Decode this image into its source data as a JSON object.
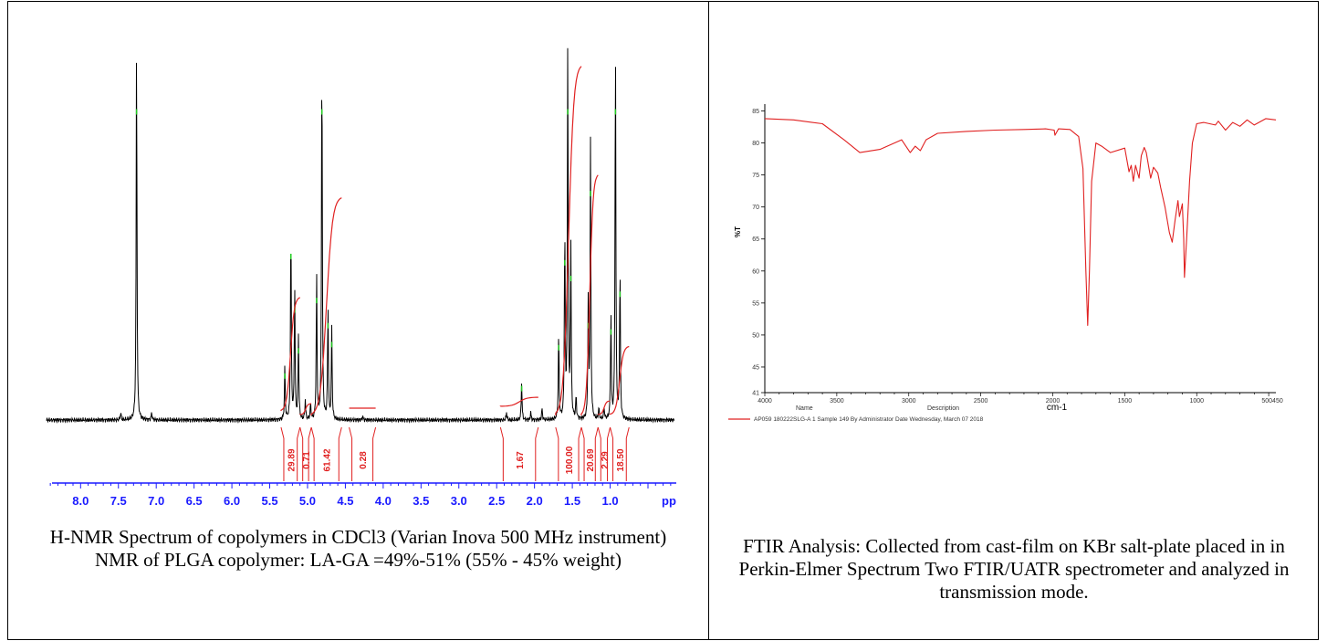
{
  "nmr": {
    "caption": "H-NMR Spectrum of copolymers in CDCl3 (Varian Inova 500 MHz instrument) NMR of PLGA copolymer: LA-GA =49%-51% (55% - 45% weight)",
    "chart_data": {
      "type": "line",
      "xlabel": "pp",
      "xlim": [
        8.45,
        0.15
      ],
      "x_ticks": [
        "8.0",
        "7.5",
        "7.0",
        "6.5",
        "6.0",
        "5.5",
        "5.0",
        "4.5",
        "4.0",
        "3.5",
        "3.0",
        "2.5",
        "2.0",
        "1.5",
        "1.0"
      ],
      "line_color": "#000000",
      "integral_color": "#e02020",
      "axis_color": "#1a1aff",
      "peaks": [
        {
          "ppm": 7.26,
          "height": 1.0
        },
        {
          "ppm": 7.47,
          "height": 0.02
        },
        {
          "ppm": 7.06,
          "height": 0.02
        },
        {
          "ppm": 5.3,
          "height": 0.14
        },
        {
          "ppm": 5.22,
          "height": 0.52
        },
        {
          "ppm": 5.17,
          "height": 0.35
        },
        {
          "ppm": 5.12,
          "height": 0.22
        },
        {
          "ppm": 5.03,
          "height": 0.05
        },
        {
          "ppm": 4.96,
          "height": 0.04
        },
        {
          "ppm": 4.88,
          "height": 0.38
        },
        {
          "ppm": 4.81,
          "height": 1.0
        },
        {
          "ppm": 4.73,
          "height": 0.3
        },
        {
          "ppm": 4.68,
          "height": 0.24
        },
        {
          "ppm": 4.27,
          "height": 0.01
        },
        {
          "ppm": 2.37,
          "height": 0.02
        },
        {
          "ppm": 2.17,
          "height": 0.1
        },
        {
          "ppm": 2.05,
          "height": 0.02
        },
        {
          "ppm": 1.9,
          "height": 0.03
        },
        {
          "ppm": 1.68,
          "height": 0.23
        },
        {
          "ppm": 1.6,
          "height": 0.5
        },
        {
          "ppm": 1.56,
          "height": 1.0
        },
        {
          "ppm": 1.52,
          "height": 0.45
        },
        {
          "ppm": 1.45,
          "height": 0.06
        },
        {
          "ppm": 1.29,
          "height": 0.3
        },
        {
          "ppm": 1.26,
          "height": 0.72
        },
        {
          "ppm": 1.15,
          "height": 0.03
        },
        {
          "ppm": 1.08,
          "height": 0.03
        },
        {
          "ppm": 0.99,
          "height": 0.28
        },
        {
          "ppm": 0.93,
          "height": 1.0
        },
        {
          "ppm": 0.87,
          "height": 0.4
        }
      ],
      "integrals": [
        {
          "label": "29.89",
          "from": 5.35,
          "to": 5.1
        },
        {
          "label": "0.71",
          "from": 5.1,
          "to": 4.95
        },
        {
          "label": "61.42",
          "from": 4.95,
          "to": 4.55
        },
        {
          "label": "0.28",
          "from": 4.45,
          "to": 4.1
        },
        {
          "label": "1.67",
          "from": 2.45,
          "to": 1.95
        },
        {
          "label": "100.00",
          "from": 1.72,
          "to": 1.38
        },
        {
          "label": "20.69",
          "from": 1.38,
          "to": 1.16
        },
        {
          "label": "2.29",
          "from": 1.16,
          "to": 1.0
        },
        {
          "label": "18.50",
          "from": 1.0,
          "to": 0.75
        }
      ]
    }
  },
  "ftir": {
    "caption": "FTIR Analysis: Collected from cast-film on KBr salt-plate placed in in Perkin-Elmer Spectrum Two FTIR/UATR spectrometer and analyzed in transmission mode.",
    "chart_data": {
      "type": "line",
      "xlabel": "cm-1",
      "ylabel": "%T",
      "xlim": [
        4000,
        450
      ],
      "ylim": [
        41,
        85.5
      ],
      "x_ticks": [
        "4000",
        "3500",
        "3000",
        "2500",
        "2000",
        "1500",
        "1000",
        "500450"
      ],
      "x_tick_values": [
        4000,
        3500,
        3000,
        2500,
        2000,
        1500,
        1000,
        475
      ],
      "y_ticks": [
        "85",
        "80",
        "75",
        "70",
        "65",
        "60",
        "55",
        "50",
        "45",
        "41"
      ],
      "y_tick_values": [
        85,
        80,
        75,
        70,
        65,
        60,
        55,
        50,
        45,
        41
      ],
      "line_color": "#e02020",
      "legend_header_name": "Name",
      "legend_header_desc": "Description",
      "legend_entry": "AP059 180222SLG-A  1     Sample 149 By Administrator Date Wednesday, March 07 2018",
      "series": [
        {
          "x": [
            4000,
            3800,
            3600,
            3450,
            3340,
            3200,
            3050,
            2990,
            2955,
            2920,
            2880,
            2800,
            2600,
            2400,
            2200,
            2050,
            1990,
            1985,
            1960,
            1880,
            1820,
            1790,
            1770,
            1757,
            1745,
            1730,
            1700,
            1660,
            1600,
            1500,
            1470,
            1455,
            1440,
            1425,
            1400,
            1385,
            1365,
            1350,
            1320,
            1300,
            1270,
            1250,
            1220,
            1190,
            1170,
            1150,
            1130,
            1120,
            1100,
            1090,
            1085,
            1070,
            1050,
            1030,
            1000,
            950,
            870,
            850,
            800,
            750,
            700,
            650,
            600,
            520,
            450
          ],
          "y": [
            83.8,
            83.6,
            83.0,
            80.5,
            78.5,
            79.0,
            80.5,
            78.5,
            79.5,
            78.8,
            80.5,
            81.5,
            81.8,
            82.0,
            82.1,
            82.2,
            82.0,
            81.2,
            82.2,
            82.1,
            81.0,
            76.0,
            60.0,
            51.5,
            60.0,
            74.0,
            80.0,
            79.5,
            78.5,
            79.2,
            75.5,
            76.5,
            74.0,
            76.5,
            74.5,
            78.0,
            79.3,
            78.5,
            74.5,
            76.2,
            75.3,
            73.0,
            70.0,
            66.0,
            64.5,
            68.0,
            71.0,
            68.5,
            70.5,
            65.0,
            59.0,
            65.0,
            74.0,
            80.0,
            83.0,
            83.2,
            82.8,
            83.4,
            82.0,
            83.2,
            82.6,
            83.6,
            82.8,
            83.8,
            83.6
          ]
        }
      ]
    }
  }
}
